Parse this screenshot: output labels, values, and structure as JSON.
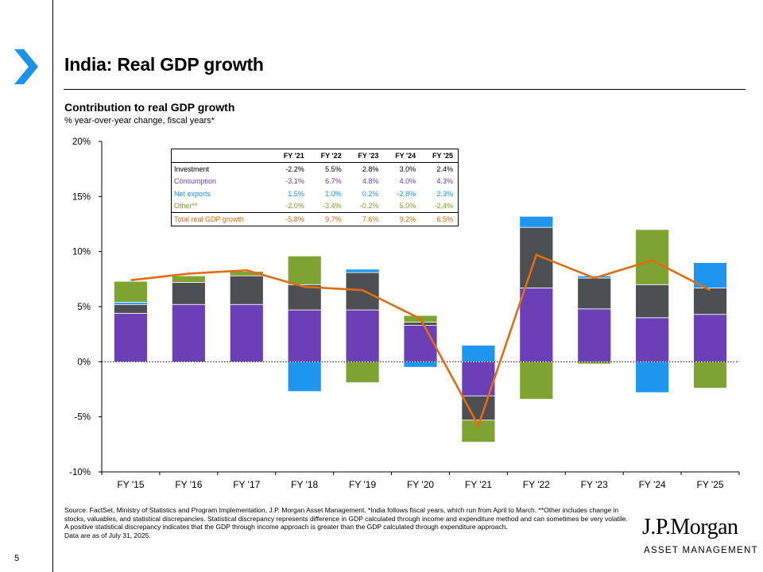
{
  "page": {
    "title": "India: Real GDP growth",
    "subtitle": "Contribution to real GDP growth",
    "subsubtitle": "% year-over-year change, fiscal years*",
    "source": "Source: FactSet, Ministry of Statistics and Program Implementation, J.P. Morgan Asset Management. *India follows fiscal years, which run from April to March. **Other includes change in stocks, valuables, and statistical discrepancies. Statistical discrepancy represents difference in GDP calculated through income and expenditure method and can sometimes be very volatile. A positive statistical discrepancy indicates that the GDP through income approach is greater than the GDP calculated through expenditure approach.",
    "data_date": "Data are as of July 31, 2025.",
    "page_number": "5",
    "logo_main": "J.P.Morgan",
    "logo_sub": "ASSET MANAGEMENT"
  },
  "colors": {
    "consumption": "#6b3fb5",
    "investment": "#4d4f53",
    "net_exports": "#1e96f0",
    "other": "#7ea332",
    "total": "#e06c14",
    "chevron": "#1e90e8"
  },
  "table": {
    "headers": [
      "",
      "FY '21",
      "FY '22",
      "FY '23",
      "FY '24",
      "FY '25"
    ],
    "rows": [
      {
        "label": "Investment",
        "values": [
          "-2.2%",
          "5.5%",
          "2.8%",
          "3.0%",
          "2.4%"
        ],
        "color": "#000000"
      },
      {
        "label": "Consumption",
        "values": [
          "-3.1%",
          "6.7%",
          "4.8%",
          "4.0%",
          "4.3%"
        ],
        "color": "#6b3fb5"
      },
      {
        "label": "Net exports",
        "values": [
          "1.5%",
          "1.0%",
          "0.2%",
          "-2.8%",
          "2.3%"
        ],
        "color": "#1e96f0"
      },
      {
        "label": "Other**",
        "values": [
          "-2.0%",
          "-3.4%",
          "-0.2%",
          "5.0%",
          "-2.4%"
        ],
        "color": "#7ea332"
      },
      {
        "label": "Total real GDP growth",
        "values": [
          "-5.8%",
          "9.7%",
          "7.6%",
          "9.2%",
          "6.5%"
        ],
        "color": "#e06c14"
      }
    ]
  },
  "chart_data": {
    "type": "bar",
    "stacked": true,
    "title": "Contribution to real GDP growth",
    "ylabel": "% year-over-year change, fiscal years*",
    "ylim": [
      -10,
      20
    ],
    "yticks": [
      -10,
      -5,
      0,
      5,
      10,
      15,
      20
    ],
    "ytick_labels": [
      "-10%",
      "-5%",
      "0%",
      "5%",
      "10%",
      "15%",
      "20%"
    ],
    "categories": [
      "FY '15",
      "FY '16",
      "FY '17",
      "FY '18",
      "FY '19",
      "FY '20",
      "FY '21",
      "FY '22",
      "FY '23",
      "FY '24",
      "FY '25"
    ],
    "series": [
      {
        "name": "Consumption",
        "key": "consumption",
        "values": [
          4.4,
          5.2,
          5.2,
          4.7,
          4.7,
          3.3,
          -3.1,
          6.7,
          4.8,
          4.0,
          4.3
        ]
      },
      {
        "name": "Investment",
        "key": "investment",
        "values": [
          0.8,
          2.0,
          2.6,
          2.3,
          3.4,
          0.3,
          -2.2,
          5.5,
          2.8,
          3.0,
          2.4
        ]
      },
      {
        "name": "Net exports",
        "key": "net_exports",
        "values": [
          0.2,
          0.0,
          0.0,
          -2.7,
          0.3,
          -0.5,
          1.5,
          1.0,
          0.2,
          -2.8,
          2.3
        ]
      },
      {
        "name": "Other**",
        "key": "other",
        "values": [
          1.9,
          0.6,
          0.4,
          2.6,
          -1.9,
          0.6,
          -2.0,
          -3.4,
          -0.2,
          5.0,
          -2.4
        ]
      },
      {
        "name": "Total real GDP growth",
        "key": "total",
        "type": "line",
        "values": [
          7.4,
          8.0,
          8.3,
          6.8,
          6.5,
          3.9,
          -5.8,
          9.7,
          7.6,
          9.2,
          6.5
        ]
      }
    ]
  }
}
